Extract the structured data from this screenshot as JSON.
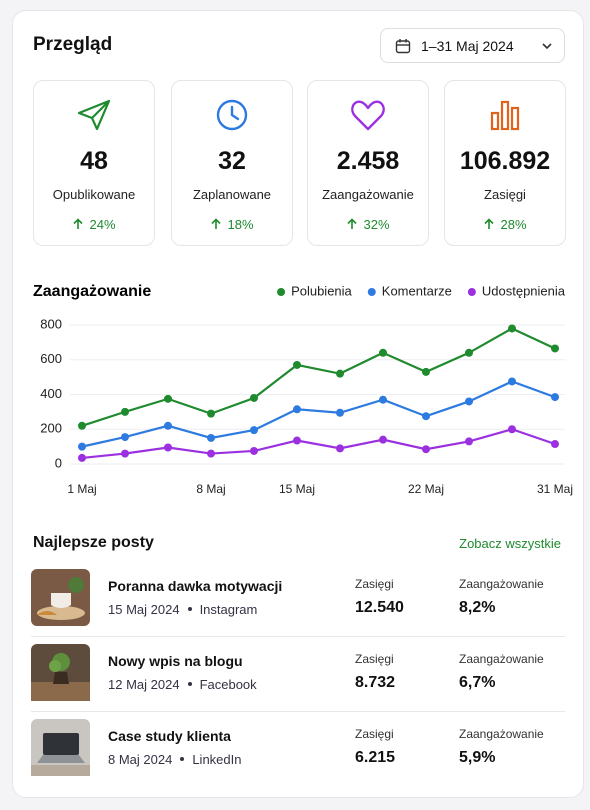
{
  "header": {
    "title": "Przegląd",
    "date_range": "1–31 Maj 2024"
  },
  "stats": [
    {
      "value": "48",
      "label": "Opublikowane",
      "change": "24%"
    },
    {
      "value": "32",
      "label": "Zaplanowane",
      "change": "18%"
    },
    {
      "value": "2.458",
      "label": "Zaangażowanie",
      "change": "32%"
    },
    {
      "value": "106.892",
      "label": "Zasięgi",
      "change": "28%"
    }
  ],
  "chart_data": {
    "type": "line",
    "title": "Zaangażowanie",
    "categories": [
      "1 Maj",
      null,
      null,
      "8 Maj",
      null,
      "15 Maj",
      null,
      null,
      "22 Maj",
      null,
      null,
      "31 Maj"
    ],
    "series": [
      {
        "name": "Polubienia",
        "color": "#1f8a2e",
        "values": [
          220,
          300,
          375,
          290,
          380,
          570,
          520,
          640,
          530,
          640,
          780,
          665
        ]
      },
      {
        "name": "Komentarze",
        "color": "#2d7be0",
        "values": [
          100,
          155,
          220,
          150,
          195,
          315,
          295,
          370,
          275,
          360,
          475,
          385
        ]
      },
      {
        "name": "Udostępnienia",
        "color": "#9b30e0",
        "values": [
          35,
          60,
          95,
          60,
          75,
          135,
          90,
          140,
          85,
          130,
          200,
          115
        ]
      }
    ],
    "ylim": [
      0,
      800
    ],
    "yticks": [
      0,
      200,
      400,
      600,
      800
    ],
    "grid": true,
    "legend": "top-right"
  },
  "posts": {
    "title": "Najlepsze posty",
    "link": "Zobacz wszystkie",
    "rows": [
      {
        "title": "Poranna dawka motywacji",
        "date": "15 Maj 2024",
        "platform": "Instagram",
        "reach_label": "Zasięgi",
        "reach": "12.540",
        "engagement_label": "Zaangażowanie",
        "engagement": "8,2%"
      },
      {
        "title": "Nowy wpis na blogu",
        "date": "12 Maj 2024",
        "platform": "Facebook",
        "reach_label": "Zasięgi",
        "reach": "8.732",
        "engagement_label": "Zaangażowanie",
        "engagement": "6,7%"
      },
      {
        "title": "Case study klienta",
        "date": "8 Maj 2024",
        "platform": "LinkedIn",
        "reach_label": "Zasięgi",
        "reach": "6.215",
        "engagement_label": "Zaangażowanie",
        "engagement": "5,9%"
      }
    ]
  }
}
